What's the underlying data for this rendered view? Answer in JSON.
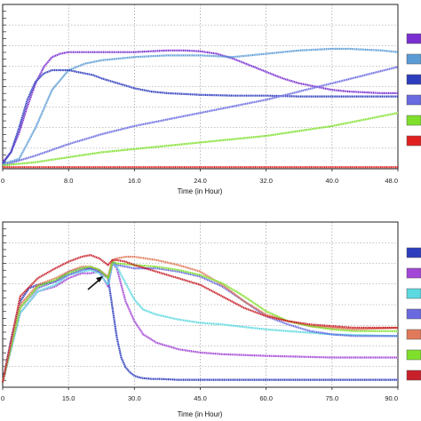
{
  "chart_data": [
    {
      "type": "line",
      "xlabel": "Time (in Hour)",
      "ylabel": "",
      "xlim": [
        0,
        48
      ],
      "ylim": [
        0,
        100
      ],
      "xticks": [
        "0",
        "8.0",
        "16.0",
        "24.0",
        "32.0",
        "40.0",
        "48.0"
      ],
      "grid": true,
      "legend": "right",
      "series": [
        {
          "color": "#7a2fd0",
          "x": [
            0,
            1,
            2,
            3,
            4,
            5,
            6,
            7,
            8,
            10,
            12,
            14,
            16,
            18,
            20,
            22,
            24,
            26,
            28,
            30,
            32,
            34,
            36,
            38,
            40,
            42,
            44,
            46,
            48
          ],
          "y": [
            4,
            10,
            22,
            38,
            52,
            62,
            68,
            70,
            71,
            71,
            71,
            71,
            71,
            71.5,
            72,
            72,
            71.5,
            70,
            67,
            63,
            59,
            55,
            52,
            50,
            48,
            47,
            46.5,
            46,
            46
          ]
        },
        {
          "color": "#5b9bd5",
          "x": [
            0,
            2,
            4,
            6,
            8,
            10,
            12,
            14,
            16,
            18,
            20,
            22,
            24,
            26,
            28,
            30,
            32,
            34,
            36,
            38,
            40,
            42,
            44,
            46,
            48
          ],
          "y": [
            3,
            6,
            25,
            48,
            60,
            64,
            66,
            67,
            68,
            68.5,
            69,
            69,
            69,
            68.5,
            68,
            69,
            70,
            71,
            72,
            72.5,
            73,
            73,
            72.5,
            72,
            71
          ]
        },
        {
          "color": "#2e3dbd",
          "x": [
            0,
            1,
            2,
            3,
            4,
            5,
            6,
            7,
            8,
            9,
            10,
            11,
            12,
            14,
            16,
            18,
            20,
            24,
            28,
            32,
            36,
            40,
            44,
            48
          ],
          "y": [
            3,
            10,
            25,
            42,
            53,
            58,
            60,
            60,
            60,
            59,
            58,
            57,
            55,
            52,
            49,
            47,
            46,
            45,
            44.5,
            44.5,
            44,
            44,
            44,
            44
          ]
        },
        {
          "color": "#6a6ae0",
          "x": [
            0,
            4,
            8,
            12,
            16,
            20,
            24,
            28,
            32,
            36,
            40,
            44,
            48
          ],
          "y": [
            2,
            8,
            15,
            21,
            26,
            30,
            34,
            38,
            42,
            47,
            52,
            57,
            62
          ]
        },
        {
          "color": "#7fe02c",
          "x": [
            0,
            4,
            8,
            12,
            16,
            20,
            24,
            28,
            32,
            36,
            40,
            44,
            48
          ],
          "y": [
            2,
            4,
            7,
            10,
            12,
            14,
            16,
            18,
            20,
            23,
            26,
            30,
            34
          ]
        },
        {
          "color": "#e02020",
          "x": [
            0,
            48
          ],
          "y": [
            1,
            1
          ]
        }
      ]
    },
    {
      "type": "line",
      "xlabel": "Time (in Hour)",
      "ylabel": "",
      "xlim": [
        0,
        90
      ],
      "ylim": [
        0,
        100
      ],
      "xticks": [
        "0",
        "15.0",
        "30.0",
        "45.0",
        "60.0",
        "75.0",
        "90.0"
      ],
      "grid": true,
      "legend": "right",
      "annotations": [
        "arrow pointing at the dip near 24 h"
      ],
      "series": [
        {
          "color": "#2e3dbd",
          "x": [
            0,
            2,
            4,
            6,
            8,
            10,
            12,
            15,
            18,
            20,
            22,
            24,
            25,
            26,
            27,
            28,
            29,
            30,
            31,
            32,
            34,
            36,
            40,
            50,
            60,
            75,
            90
          ],
          "y": [
            3,
            30,
            52,
            60,
            62,
            63,
            64,
            70,
            72,
            72,
            71,
            66,
            48,
            30,
            18,
            12,
            9,
            7,
            6,
            5.5,
            5,
            5,
            4.5,
            4.5,
            4.5,
            4.5,
            4.5
          ]
        },
        {
          "color": "#a347d6",
          "x": [
            0,
            4,
            8,
            12,
            15,
            18,
            20,
            22,
            24,
            25,
            26,
            27,
            28,
            30,
            32,
            35,
            40,
            45,
            50,
            60,
            75,
            90
          ],
          "y": [
            3,
            45,
            58,
            61,
            66,
            69,
            69,
            70,
            61,
            75,
            72,
            62,
            52,
            40,
            32,
            27,
            23,
            21,
            20,
            19,
            18,
            18
          ]
        },
        {
          "color": "#5bd8e0",
          "x": [
            0,
            4,
            8,
            12,
            15,
            18,
            20,
            22,
            24,
            25,
            26,
            28,
            30,
            32,
            35,
            40,
            45,
            50,
            60,
            75,
            90
          ],
          "y": [
            3,
            45,
            58,
            62,
            68,
            70,
            71,
            69,
            62,
            75,
            73,
            63,
            53,
            47,
            44,
            41,
            39,
            38,
            35,
            32,
            31
          ]
        },
        {
          "color": "#6a6ae0",
          "x": [
            0,
            4,
            8,
            12,
            15,
            18,
            20,
            22,
            24,
            25,
            26,
            30,
            35,
            40,
            45,
            50,
            55,
            60,
            65,
            70,
            75,
            80,
            90
          ],
          "y": [
            3,
            48,
            60,
            64,
            68,
            71,
            72,
            70,
            66,
            76,
            74,
            72,
            72,
            70,
            67,
            61,
            52,
            43,
            38,
            34,
            32,
            31,
            31
          ]
        },
        {
          "color": "#e07a5a",
          "x": [
            0,
            4,
            8,
            12,
            15,
            18,
            20,
            22,
            24,
            25,
            26,
            28,
            30,
            35,
            40,
            45,
            50,
            55,
            60,
            65,
            70,
            75,
            80,
            90
          ],
          "y": [
            3,
            50,
            62,
            66,
            70,
            73,
            73,
            71,
            67,
            77,
            78,
            79,
            79,
            77,
            74,
            70,
            62,
            52,
            44,
            40,
            37,
            36,
            35,
            36
          ]
        },
        {
          "color": "#7fe02c",
          "x": [
            0,
            4,
            8,
            12,
            15,
            18,
            20,
            22,
            24,
            25,
            26,
            30,
            35,
            40,
            45,
            50,
            55,
            60,
            65,
            70,
            75,
            80,
            90
          ],
          "y": [
            3,
            48,
            61,
            65,
            69,
            72,
            73,
            71,
            66,
            76,
            75,
            74,
            73,
            71,
            68,
            63,
            55,
            46,
            40,
            37,
            35,
            34,
            34
          ]
        },
        {
          "color": "#c8202a",
          "x": [
            0,
            4,
            8,
            12,
            15,
            18,
            20,
            22,
            24,
            25,
            26,
            28,
            30,
            35,
            40,
            45,
            50,
            55,
            60,
            65,
            70,
            75,
            80,
            90
          ],
          "y": [
            3,
            55,
            66,
            72,
            76,
            79,
            80,
            78,
            74,
            77,
            77,
            76,
            74,
            70,
            66,
            62,
            55,
            48,
            43,
            40,
            38,
            37,
            36,
            36
          ]
        }
      ]
    }
  ]
}
